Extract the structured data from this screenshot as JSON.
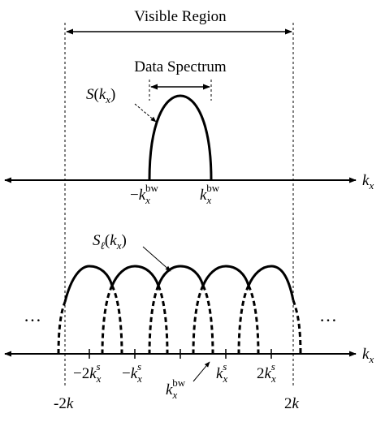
{
  "top": {
    "visible_region_label": "Visible Region",
    "data_spectrum_label": "Data Spectrum",
    "spectrum_fn": {
      "name": "S",
      "open": "(",
      "var": "k",
      "sub": "x",
      "close": ")"
    },
    "axis_label": {
      "var": "k",
      "sub": "x"
    },
    "tick_neg": {
      "sign": "−",
      "var": "k",
      "sub": "x",
      "sup": "bw"
    },
    "tick_pos": {
      "var": "k",
      "sub": "x",
      "sup": "bw"
    }
  },
  "bottom": {
    "periodic_fn": {
      "name": "S",
      "sub": "ℓ",
      "open": "(",
      "var": "k",
      "sub2": "x",
      "close": ")"
    },
    "axis_label": {
      "var": "k",
      "sub": "x"
    },
    "ellipsis_left": "…",
    "ellipsis_right": "…",
    "tick_m2ks": {
      "coef": "−2",
      "var": "k",
      "sub": "x",
      "sup": "s"
    },
    "tick_mks": {
      "sign": "−",
      "var": "k",
      "sub": "x",
      "sup": "s"
    },
    "tick_ks": {
      "var": "k",
      "sub": "x",
      "sup": "s"
    },
    "tick_2ks": {
      "coef": "2",
      "var": "k",
      "sub": "x",
      "sup": "s"
    },
    "tick_kbw": {
      "var": "k",
      "sub": "x",
      "sup": "bw"
    },
    "limit_left": {
      "coef": "-2",
      "var": "k"
    },
    "limit_right": {
      "coef": "2",
      "var": "k"
    }
  },
  "colors": {
    "ink": "#000000",
    "background": "#ffffff"
  }
}
